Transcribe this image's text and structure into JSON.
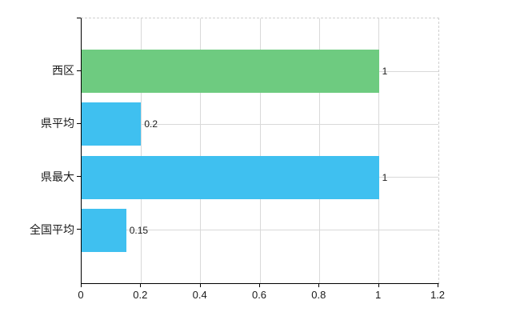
{
  "chart_data": {
    "type": "bar",
    "orientation": "horizontal",
    "title": "",
    "categories": [
      "西区",
      "県平均",
      "県最大",
      "全国平均"
    ],
    "values": [
      1,
      0.2,
      1,
      0.15
    ],
    "value_labels": [
      "1",
      "0.2",
      "1",
      "0.15"
    ],
    "series": [
      {
        "name": "",
        "values": [
          1,
          0.2,
          1,
          0.15
        ]
      }
    ],
    "bar_colors": [
      "#6ecb80",
      "#3fc0f0",
      "#3fc0f0",
      "#3fc0f0"
    ],
    "xlim": [
      0,
      1.2
    ],
    "x_ticks": [
      0,
      0.2,
      0.4,
      0.6,
      0.8,
      1,
      1.2
    ],
    "x_tick_labels": [
      "0",
      "0.2",
      "0.4",
      "0.6",
      "0.8",
      "1",
      "1.2"
    ],
    "xlabel": "",
    "ylabel": "",
    "grid": true,
    "legend": false,
    "colors": {
      "grid": "#d9d9d9",
      "dashed_border": "#cfcfcf",
      "axis": "#000000",
      "text": "#1a1a1a",
      "background": "#ffffff",
      "highlight_bar": "#6ecb80",
      "default_bar": "#3fc0f0"
    }
  }
}
